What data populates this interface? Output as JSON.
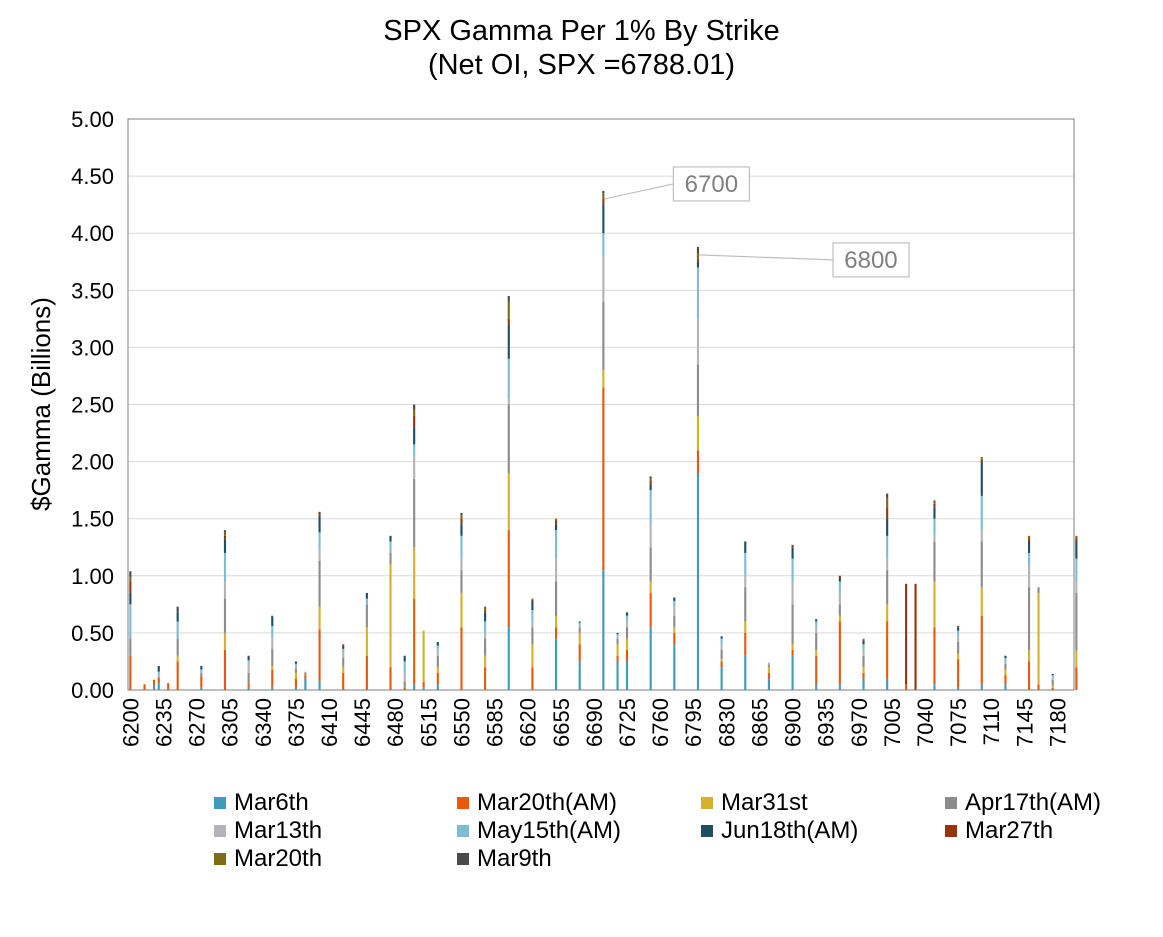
{
  "chart_data": {
    "type": "bar",
    "stacked": true,
    "title": "SPX Gamma Per 1% By Strike",
    "subtitle": "(Net OI, SPX =6788.01)",
    "xlabel": "",
    "ylabel": "$Gamma (Billions)",
    "ylim": [
      0,
      5
    ],
    "yticks": [
      "0.00",
      "0.50",
      "1.00",
      "1.50",
      "2.00",
      "2.50",
      "3.00",
      "3.50",
      "4.00",
      "4.50",
      "5.00"
    ],
    "x_start": 6200,
    "x_step": 5,
    "x_count": 200,
    "xtick_labels": [
      "6200",
      "6235",
      "6270",
      "6305",
      "6340",
      "6375",
      "6410",
      "6445",
      "6480",
      "6515",
      "6550",
      "6585",
      "6620",
      "6655",
      "6690",
      "6725",
      "6760",
      "6795",
      "6830",
      "6865",
      "6900",
      "6935",
      "6970",
      "7005",
      "7040",
      "7075",
      "7110",
      "7145",
      "7180"
    ],
    "legend_position": "bottom",
    "series": [
      {
        "name": "Mar6th",
        "color": "#3d9bbb"
      },
      {
        "name": "Mar20th(AM)",
        "color": "#e8590c"
      },
      {
        "name": "Mar31st",
        "color": "#d4b22a"
      },
      {
        "name": "Apr17th(AM)",
        "color": "#8c8c8c"
      },
      {
        "name": "Mar13th",
        "color": "#b4b4b8"
      },
      {
        "name": "May15th(AM)",
        "color": "#7fbcd4"
      },
      {
        "name": "Jun18th(AM)",
        "color": "#1f4e63"
      },
      {
        "name": "Mar27th",
        "color": "#93360e"
      },
      {
        "name": "Mar20th",
        "color": "#7d6a12"
      },
      {
        "name": "Mar9th",
        "color": "#4a4a4a"
      }
    ],
    "bars": [
      {
        "strike": 6200,
        "values": [
          0,
          0.3,
          0,
          0.15,
          0,
          0.3,
          0.1,
          0.1,
          0.04,
          0.05
        ]
      },
      {
        "strike": 6215,
        "values": [
          0,
          0.05,
          0,
          0,
          0,
          0,
          0,
          0,
          0,
          0
        ]
      },
      {
        "strike": 6225,
        "values": [
          0.04,
          0.05,
          0,
          0,
          0,
          0,
          0,
          0,
          0,
          0
        ]
      },
      {
        "strike": 6230,
        "values": [
          0.06,
          0.05,
          0,
          0,
          0,
          0.05,
          0.05,
          0,
          0,
          0
        ]
      },
      {
        "strike": 6240,
        "values": [
          0,
          0.06,
          0,
          0,
          0,
          0,
          0,
          0,
          0,
          0
        ]
      },
      {
        "strike": 6250,
        "values": [
          0,
          0.25,
          0.05,
          0.15,
          0,
          0.15,
          0.08,
          0,
          0,
          0.05
        ]
      },
      {
        "strike": 6275,
        "values": [
          0.02,
          0.1,
          0,
          0.03,
          0,
          0.03,
          0.03,
          0,
          0,
          0
        ]
      },
      {
        "strike": 6300,
        "values": [
          0,
          0.35,
          0.15,
          0.3,
          0.15,
          0.25,
          0.12,
          0.03,
          0.03,
          0.02
        ]
      },
      {
        "strike": 6325,
        "values": [
          0.02,
          0.03,
          0,
          0.1,
          0.08,
          0.03,
          0.03,
          0,
          0,
          0.01
        ]
      },
      {
        "strike": 6350,
        "values": [
          0.03,
          0.15,
          0.03,
          0.15,
          0.1,
          0.1,
          0.08,
          0,
          0,
          0.01
        ]
      },
      {
        "strike": 6375,
        "values": [
          0.02,
          0.08,
          0.05,
          0.04,
          0.02,
          0.02,
          0.02,
          0,
          0,
          0
        ]
      },
      {
        "strike": 6385,
        "values": [
          0.1,
          0.03,
          0,
          0.02,
          0.01,
          0,
          0,
          0,
          0,
          0
        ]
      },
      {
        "strike": 6400,
        "values": [
          0.08,
          0.45,
          0.2,
          0.4,
          0.1,
          0.15,
          0.15,
          0.03,
          0,
          0
        ]
      },
      {
        "strike": 6425,
        "values": [
          0,
          0.15,
          0.05,
          0.08,
          0.05,
          0.03,
          0.02,
          0.02,
          0,
          0
        ]
      },
      {
        "strike": 6450,
        "values": [
          0,
          0.3,
          0.25,
          0.2,
          0,
          0.05,
          0.05,
          0,
          0,
          0
        ]
      },
      {
        "strike": 6475,
        "values": [
          0,
          0.2,
          0.9,
          0.1,
          0,
          0.1,
          0.05,
          0,
          0,
          0
        ]
      },
      {
        "strike": 6490,
        "values": [
          0,
          0.02,
          0,
          0.05,
          0.08,
          0.1,
          0.05,
          0,
          0,
          0
        ]
      },
      {
        "strike": 6500,
        "values": [
          0.05,
          0.75,
          0.45,
          0.6,
          0.2,
          0.1,
          0.15,
          0.1,
          0.05,
          0.05
        ]
      },
      {
        "strike": 6510,
        "values": [
          0.02,
          0.05,
          0.45,
          0,
          0,
          0,
          0,
          0,
          0,
          0
        ]
      },
      {
        "strike": 6525,
        "values": [
          0.05,
          0.1,
          0.05,
          0.1,
          0.05,
          0.04,
          0.03,
          0,
          0,
          0
        ]
      },
      {
        "strike": 6550,
        "values": [
          0,
          0.55,
          0.3,
          0.2,
          0.1,
          0.2,
          0.1,
          0.05,
          0.03,
          0.02
        ]
      },
      {
        "strike": 6575,
        "values": [
          0,
          0.2,
          0.1,
          0.15,
          0.05,
          0.1,
          0.08,
          0.02,
          0.02,
          0.01
        ]
      },
      {
        "strike": 6600,
        "values": [
          0.55,
          0.85,
          0.5,
          0.6,
          0.05,
          0.35,
          0.3,
          0.05,
          0.15,
          0.05
        ]
      },
      {
        "strike": 6625,
        "values": [
          0,
          0.2,
          0.2,
          0.15,
          0.05,
          0.1,
          0.08,
          0.01,
          0.01,
          0
        ]
      },
      {
        "strike": 6650,
        "values": [
          0.45,
          0.1,
          0.1,
          0.3,
          0.2,
          0.25,
          0.05,
          0.03,
          0.02,
          0
        ]
      },
      {
        "strike": 6675,
        "values": [
          0.25,
          0.15,
          0.1,
          0.05,
          0.02,
          0.02,
          0.01,
          0,
          0,
          0
        ]
      },
      {
        "strike": 6700,
        "values": [
          1.05,
          1.6,
          0.15,
          0.6,
          0.4,
          0.2,
          0.25,
          0.05,
          0.05,
          0.02
        ]
      },
      {
        "strike": 6715,
        "values": [
          0.25,
          0.05,
          0.1,
          0.05,
          0.02,
          0.02,
          0.01,
          0,
          0,
          0
        ]
      },
      {
        "strike": 6725,
        "values": [
          0.25,
          0.1,
          0.1,
          0.1,
          0.05,
          0.05,
          0.03,
          0,
          0,
          0
        ]
      },
      {
        "strike": 6750,
        "values": [
          0.55,
          0.3,
          0.1,
          0.3,
          0.2,
          0.3,
          0.05,
          0.03,
          0.02,
          0.02
        ]
      },
      {
        "strike": 6775,
        "values": [
          0.4,
          0.1,
          0.05,
          0.1,
          0.08,
          0.05,
          0.03,
          0,
          0,
          0
        ]
      },
      {
        "strike": 6800,
        "values": [
          1.9,
          0.2,
          0.3,
          0.45,
          0.4,
          0.45,
          0.05,
          0.02,
          0.05,
          0.06
        ]
      },
      {
        "strike": 6825,
        "values": [
          0.2,
          0.05,
          0.02,
          0.08,
          0.05,
          0.05,
          0.02,
          0,
          0,
          0
        ]
      },
      {
        "strike": 6850,
        "values": [
          0.3,
          0.2,
          0.1,
          0.3,
          0.1,
          0.2,
          0.1,
          0,
          0,
          0
        ]
      },
      {
        "strike": 6875,
        "values": [
          0.1,
          0.05,
          0.05,
          0.02,
          0.02,
          0,
          0,
          0,
          0,
          0
        ]
      },
      {
        "strike": 6900,
        "values": [
          0.3,
          0.05,
          0.05,
          0.35,
          0.2,
          0.2,
          0.1,
          0.02,
          0,
          0
        ]
      },
      {
        "strike": 6925,
        "values": [
          0.05,
          0.25,
          0.05,
          0.15,
          0.05,
          0.05,
          0.02,
          0,
          0,
          0
        ]
      },
      {
        "strike": 6950,
        "values": [
          0.05,
          0.55,
          0.05,
          0.1,
          0.1,
          0.1,
          0.03,
          0.02,
          0,
          0
        ]
      },
      {
        "strike": 6975,
        "values": [
          0.1,
          0.05,
          0.05,
          0.1,
          0.05,
          0.05,
          0.03,
          0.01,
          0.01,
          0
        ]
      },
      {
        "strike": 7000,
        "values": [
          0.1,
          0.5,
          0.15,
          0.3,
          0.1,
          0.2,
          0.15,
          0.1,
          0.08,
          0.04
        ]
      },
      {
        "strike": 7020,
        "values": [
          0,
          0.05,
          0,
          0,
          0,
          0,
          0,
          0.88,
          0,
          0
        ]
      },
      {
        "strike": 7030,
        "values": [
          0,
          0,
          0,
          0,
          0,
          0,
          0,
          0.93,
          0,
          0
        ]
      },
      {
        "strike": 7050,
        "values": [
          0.05,
          0.5,
          0.4,
          0.35,
          0.05,
          0.15,
          0.1,
          0.03,
          0.02,
          0.01
        ]
      },
      {
        "strike": 7075,
        "values": [
          0.02,
          0.25,
          0.05,
          0.1,
          0.05,
          0.05,
          0.03,
          0.01,
          0,
          0
        ]
      },
      {
        "strike": 7100,
        "values": [
          0.05,
          0.6,
          0.25,
          0.4,
          0.1,
          0.3,
          0.3,
          0.02,
          0.02,
          0
        ]
      },
      {
        "strike": 7125,
        "values": [
          0.05,
          0.08,
          0.05,
          0.05,
          0.02,
          0.03,
          0.02,
          0,
          0,
          0
        ]
      },
      {
        "strike": 7150,
        "values": [
          0,
          0.25,
          0.1,
          0.55,
          0.2,
          0.1,
          0.1,
          0.03,
          0.02,
          0
        ]
      },
      {
        "strike": 7160,
        "values": [
          0,
          0.05,
          0.8,
          0.05,
          0,
          0,
          0,
          0,
          0,
          0
        ]
      },
      {
        "strike": 7175,
        "values": [
          0,
          0.02,
          0.02,
          0.05,
          0.02,
          0.02,
          0.01,
          0,
          0,
          0
        ]
      },
      {
        "strike": 7200,
        "values": [
          0,
          0.2,
          0.15,
          0.5,
          0.1,
          0.2,
          0.15,
          0.03,
          0.02,
          0
        ]
      }
    ],
    "annotations": [
      {
        "label": "6700",
        "strike": 6700,
        "value": 4.37
      },
      {
        "label": "6800",
        "strike": 6800,
        "value": 3.88
      }
    ]
  }
}
